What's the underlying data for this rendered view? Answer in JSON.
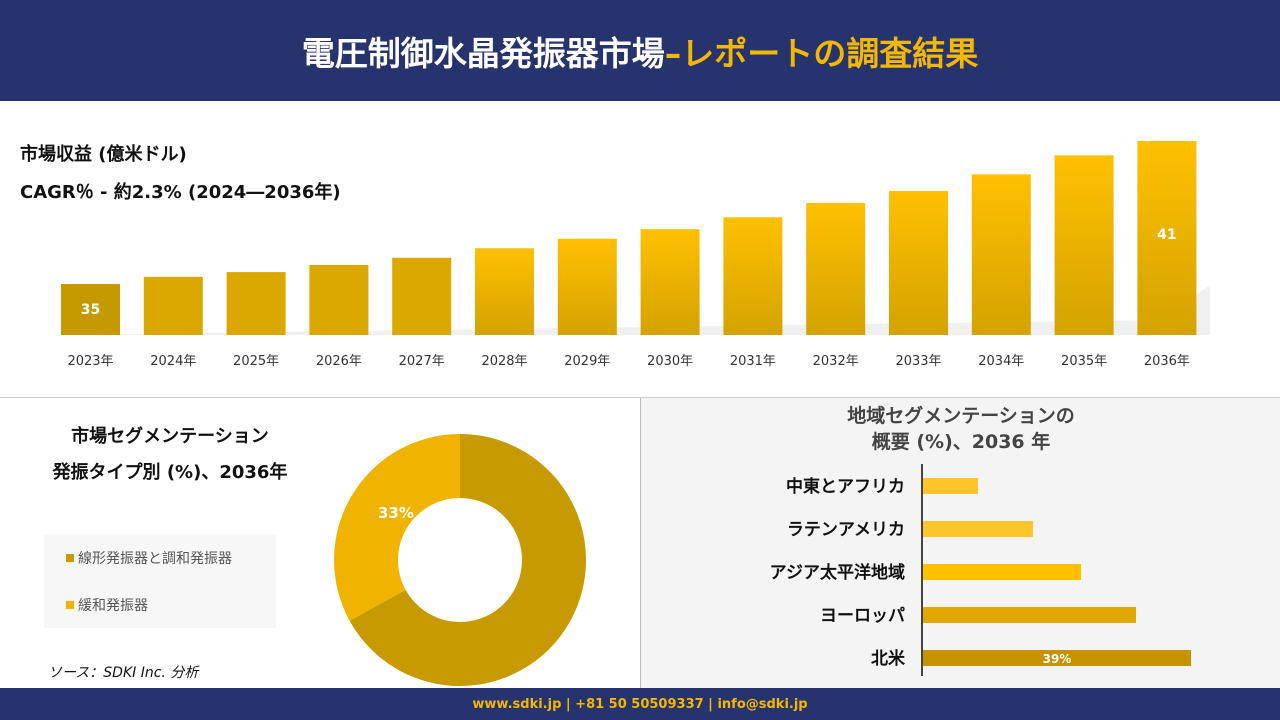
{
  "header": {
    "title_main": "電圧制御水晶発振器市場",
    "title_accent": "–レポートの調査結果"
  },
  "colors": {
    "navy": "#27336d",
    "accent": "#f5b800",
    "dark_gold": "#c49a00",
    "gold": "#f1b800"
  },
  "chart_data": [
    {
      "type": "bar",
      "title": "市場収益 (億米ドル)",
      "subtitle": "CAGR％ - 約2.3% (2024―2036年)",
      "categories": [
        "2023年",
        "2024年",
        "2025年",
        "2026年",
        "2027年",
        "2028年",
        "2029年",
        "2030年",
        "2031年",
        "2032年",
        "2033年",
        "2034年",
        "2035年",
        "2036年"
      ],
      "values": [
        35,
        35.3,
        35.5,
        35.8,
        36.1,
        36.5,
        36.9,
        37.3,
        37.8,
        38.4,
        38.9,
        39.6,
        40.4,
        41
      ],
      "data_labels": {
        "0": "35",
        "13": "41"
      }
    },
    {
      "type": "pie",
      "donut": true,
      "title_line1": "市場セグメンテーション",
      "title_line2": "発振タイプ別 (%)、2036年",
      "slices": [
        {
          "name": "線形発振器と調和発振器",
          "value": 67,
          "color": "#c69a00"
        },
        {
          "name": "緩和発振器",
          "value": 33,
          "color": "#f0b400",
          "label": "33%"
        }
      ]
    },
    {
      "type": "bar",
      "orientation": "horizontal",
      "title_line1": "地域セグメンテーションの",
      "title_line2": "概要 (%)、2036 年",
      "categories": [
        "中東とアフリカ",
        "ラテンアメリカ",
        "アジア太平洋地域",
        "ヨーロッパ",
        "北米"
      ],
      "values": [
        8,
        16,
        23,
        31,
        39
      ],
      "colors": [
        "#fdc52a",
        "#fdc52a",
        "#ffc000",
        "#e0a800",
        "#c69200"
      ],
      "data_labels": {
        "4": "39%"
      }
    }
  ],
  "source": "ソース：SDKI Inc. 分析",
  "footer": "www.sdki.jp | +81 50 50509337 | info@sdki.jp"
}
